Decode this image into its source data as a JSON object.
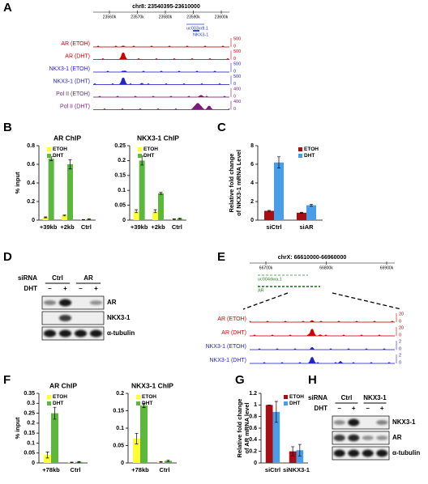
{
  "panel_labels": [
    "A",
    "B",
    "C",
    "D",
    "E",
    "F",
    "G",
    "H"
  ],
  "track_a": {
    "coords": "chr8: 23540395-23610000",
    "scale_ticks": [
      "23560k",
      "23570k",
      "23580k",
      "23590k",
      "23600k"
    ],
    "genes": [
      "uc003xdt.1",
      "NKX3-1"
    ],
    "tracks": [
      {
        "label": "AR (ETOH)",
        "color": "#d00000",
        "max": "500",
        "min": "0"
      },
      {
        "label": "AR (DHT)",
        "color": "#d00000",
        "max": "500",
        "min": "0"
      },
      {
        "label": "NKX3-1 (ETOH)",
        "color": "#2323c8",
        "max": "500",
        "min": "0"
      },
      {
        "label": "NKX3-1 (DHT)",
        "color": "#2323c8",
        "max": "500",
        "min": "0"
      },
      {
        "label": "Pol II (ETOH)",
        "color": "#7b1a7b",
        "max": "400",
        "min": "0"
      },
      {
        "label": "Pol II (DHT)",
        "color": "#7b1a7b",
        "max": "400",
        "min": "0"
      }
    ]
  },
  "track_e": {
    "coords": "chrX: 66610000-66960000",
    "scale_ticks": [
      "66700k",
      "66800k",
      "66900k"
    ],
    "genes": [
      "uc004dwa.1",
      "AR"
    ],
    "tracks": [
      {
        "label": "AR (ETOH)",
        "color": "#d00000",
        "max": "20",
        "min": "0"
      },
      {
        "label": "AR (DHT)",
        "color": "#d00000",
        "max": "20",
        "min": "0"
      },
      {
        "label": "NKX3-1 (ETOH)",
        "color": "#2323c8",
        "max": "2",
        "min": "0"
      },
      {
        "label": "NKX3-1 (DHT)",
        "color": "#2323c8",
        "max": "2",
        "min": "0"
      }
    ]
  },
  "blot_d": {
    "row_title": "siRNA",
    "groups": [
      "Ctrl",
      "AR"
    ],
    "treatment": "DHT",
    "signs": [
      "–",
      "+",
      "–",
      "+"
    ],
    "bands": [
      "AR",
      "NKX3-1",
      "α-tubulin"
    ]
  },
  "blot_h": {
    "row_title": "siRNA",
    "groups": [
      "Ctrl",
      "NKX3-1"
    ],
    "treatment": "DHT",
    "signs": [
      "–",
      "+",
      "–",
      "+"
    ],
    "bands": [
      "NKX3-1",
      "AR",
      "α-tubulin"
    ]
  },
  "chart_data": [
    {
      "type": "bar",
      "title": "AR ChIP",
      "ylabel": [
        "% input"
      ],
      "categories": [
        "+39kb",
        "+2kb",
        "Ctrl"
      ],
      "series": [
        {
          "name": "ETOH",
          "color": "#ffff33",
          "values": [
            0.03,
            0.05,
            0.005
          ],
          "errors": [
            0.005,
            0.005,
            0.002
          ]
        },
        {
          "name": "DHT",
          "color": "#5cb83c",
          "values": [
            0.66,
            0.6,
            0.01
          ],
          "errors": [
            0.02,
            0.05,
            0.003
          ]
        }
      ],
      "ylim": [
        0,
        0.8
      ],
      "yticks": [
        0,
        0.2,
        0.4,
        0.6,
        0.8
      ],
      "legend": "upper left"
    },
    {
      "type": "bar",
      "title": "NKX3-1 ChIP",
      "categories": [
        "+39kb",
        "+2kb",
        "Ctrl"
      ],
      "series": [
        {
          "name": "ETOH",
          "color": "#ffff33",
          "values": [
            0.03,
            0.03,
            0.003
          ],
          "errors": [
            0.005,
            0.005,
            0.001
          ]
        },
        {
          "name": "DHT",
          "color": "#5cb83c",
          "values": [
            0.2,
            0.09,
            0.005
          ],
          "errors": [
            0.015,
            0.003,
            0.002
          ]
        }
      ],
      "ylim": [
        0,
        0.25
      ],
      "yticks": [
        0,
        0.05,
        0.1,
        0.15,
        0.2,
        0.25
      ],
      "legend": "upper left"
    },
    {
      "type": "bar",
      "ylabel": [
        "Relative fold change",
        "of NKX3-1 mRNA Level"
      ],
      "categories": [
        "siCtrl",
        "siAR"
      ],
      "series": [
        {
          "name": "ETOH",
          "color": "#a50f15",
          "values": [
            1,
            0.8
          ],
          "errors": [
            0.05,
            0.05
          ]
        },
        {
          "name": "DHT",
          "color": "#4a9ee8",
          "values": [
            6.2,
            1.6
          ],
          "errors": [
            0.6,
            0.1
          ]
        }
      ],
      "ylim": [
        0,
        8
      ],
      "yticks": [
        0,
        2,
        4,
        6,
        8
      ],
      "legend": "upper right"
    },
    {
      "type": "bar",
      "title": "AR ChIP",
      "ylabel": [
        "% input"
      ],
      "categories": [
        "+78kb",
        "Ctrl"
      ],
      "series": [
        {
          "name": "ETOH",
          "color": "#ffff33",
          "values": [
            0.04,
            0.003
          ],
          "errors": [
            0.015,
            0.001
          ]
        },
        {
          "name": "DHT",
          "color": "#5cb83c",
          "values": [
            0.25,
            0.005
          ],
          "errors": [
            0.03,
            0.002
          ]
        }
      ],
      "ylim": [
        0,
        0.35
      ],
      "yticks": [
        0,
        0.05,
        0.1,
        0.15,
        0.2,
        0.25,
        0.3,
        0.35
      ],
      "legend": "upper left"
    },
    {
      "type": "bar",
      "title": "NKX3-1 ChIP",
      "categories": [
        "+78kb",
        "Ctrl"
      ],
      "series": [
        {
          "name": "ETOH",
          "color": "#ffff33",
          "values": [
            0.07,
            0.003
          ],
          "errors": [
            0.015,
            0.001
          ]
        },
        {
          "name": "DHT",
          "color": "#5cb83c",
          "values": [
            0.165,
            0.006
          ],
          "errors": [
            0.006,
            0.002
          ]
        }
      ],
      "ylim": [
        0,
        0.2
      ],
      "yticks": [
        0,
        0.05,
        0.1,
        0.15,
        0.2
      ],
      "legend": "upper left"
    },
    {
      "type": "bar",
      "ylabel": [
        "Relative fold change",
        "of AR mRNA level"
      ],
      "categories": [
        "siCtrl",
        "siNKX3-1"
      ],
      "series": [
        {
          "name": "ETOH",
          "color": "#a50f15",
          "values": [
            1,
            0.2
          ],
          "errors": [
            0,
            0.08
          ]
        },
        {
          "name": "DHT",
          "color": "#4a9ee8",
          "values": [
            0.88,
            0.22
          ],
          "errors": [
            0.18,
            0.1
          ]
        }
      ],
      "ylim": [
        0,
        1.2
      ],
      "yticks": [
        0,
        0.2,
        0.4,
        0.6,
        0.8,
        1,
        1.2
      ],
      "legend": "upper right"
    }
  ]
}
